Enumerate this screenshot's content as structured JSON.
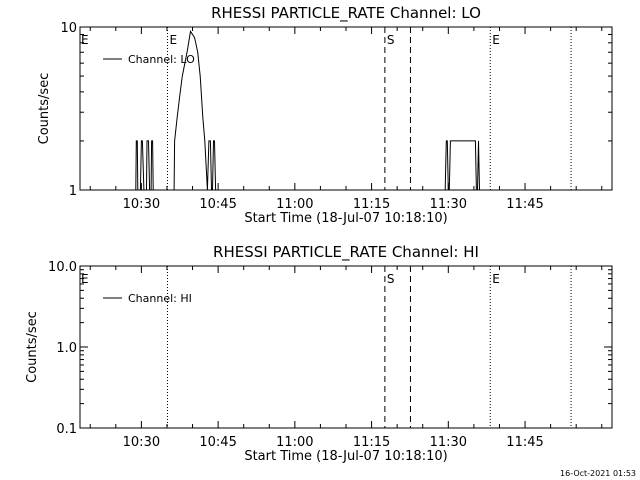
{
  "timestamp": "16-Oct-2021 01:53",
  "chart_data": [
    {
      "type": "line",
      "title": "RHESSI PARTICLE_RATE Channel: LO",
      "xlabel": "Start Time (18-Jul-07 10:18:10)",
      "ylabel": "Counts/sec",
      "x_unit": "minutes after 10:18:10",
      "xlim": [
        0,
        104
      ],
      "ylim": [
        1,
        10
      ],
      "yscale": "log",
      "x_ticks": [
        "10:30",
        "10:45",
        "11:00",
        "11:15",
        "11:30",
        "11:45"
      ],
      "y_ticks": [
        "1",
        "10"
      ],
      "legend": {
        "label": "Channel: LO",
        "position": "top-left"
      },
      "series": [
        {
          "name": "Channel: LO",
          "x": [
            10.9,
            11.0,
            11.2,
            11.3,
            11.5,
            11.8,
            12.0,
            12.2,
            12.5,
            12.8,
            13.0,
            13.1,
            13.4,
            13.6,
            13.9,
            14.0,
            14.2,
            14.3,
            14.5,
            14.6,
            14.8,
            18.4,
            18.5,
            19.0,
            19.5,
            20.0,
            21.0,
            21.6,
            22.4,
            23.0,
            23.5,
            24.0,
            24.4,
            24.9,
            25.2,
            25.5,
            25.7,
            25.9,
            26.1,
            26.3,
            26.5,
            26.7,
            27.0,
            27.2
          ],
          "y": [
            1,
            2,
            2,
            1,
            1,
            1,
            2,
            2,
            1,
            1,
            1,
            2,
            2,
            1,
            1,
            2,
            2,
            1,
            1,
            1,
            1,
            1,
            2,
            2.8,
            3.8,
            5,
            7.2,
            9.4,
            8.6,
            7,
            5,
            2.8,
            2,
            1,
            2,
            2,
            1,
            1,
            2,
            2,
            1,
            1,
            1,
            1
          ],
          "segments": [
            {
              "x": [
                71.4,
                71.6,
                71.8,
                72.0,
                72.2,
                72.4,
                72.6,
                72.8,
                73.1,
                74.0,
                75.0,
                76.0,
                77.0,
                77.3,
                77.5,
                77.7,
                77.9,
                78.1,
                78.3
              ],
              "y": [
                1,
                2,
                2,
                1,
                1,
                2,
                2,
                2,
                2,
                2,
                2,
                2,
                2,
                2,
                1,
                1,
                2,
                1,
                1
              ]
            }
          ]
        }
      ],
      "vlines": [
        {
          "x": 17.1,
          "style": "dotted",
          "label": "E"
        },
        {
          "x": 59.6,
          "style": "dashed",
          "label": "S"
        },
        {
          "x": 64.6,
          "style": "dashed",
          "label": ""
        },
        {
          "x": 80.2,
          "style": "dotted",
          "label": "E"
        },
        {
          "x": 96.0,
          "style": "dotted",
          "label": ""
        }
      ],
      "edge_label": "E"
    },
    {
      "type": "line",
      "title": "RHESSI PARTICLE_RATE Channel: HI",
      "xlabel": "Start Time (18-Jul-07 10:18:10)",
      "ylabel": "Counts/sec",
      "x_unit": "minutes after 10:18:10",
      "xlim": [
        0,
        104
      ],
      "ylim": [
        0.1,
        10
      ],
      "yscale": "log",
      "x_ticks": [
        "10:30",
        "10:45",
        "11:00",
        "11:15",
        "11:30",
        "11:45"
      ],
      "y_ticks": [
        "0.1",
        "1.0",
        "10.0"
      ],
      "legend": {
        "label": "Channel: HI",
        "position": "top-left"
      },
      "series": [
        {
          "name": "Channel: HI",
          "x": [],
          "y": []
        }
      ],
      "vlines": [
        {
          "x": 17.1,
          "style": "dotted",
          "label": ""
        },
        {
          "x": 59.6,
          "style": "dashed",
          "label": "S"
        },
        {
          "x": 64.6,
          "style": "dashed",
          "label": ""
        },
        {
          "x": 80.2,
          "style": "dotted",
          "label": "E"
        },
        {
          "x": 96.0,
          "style": "dotted",
          "label": ""
        }
      ],
      "edge_label": "E"
    }
  ]
}
